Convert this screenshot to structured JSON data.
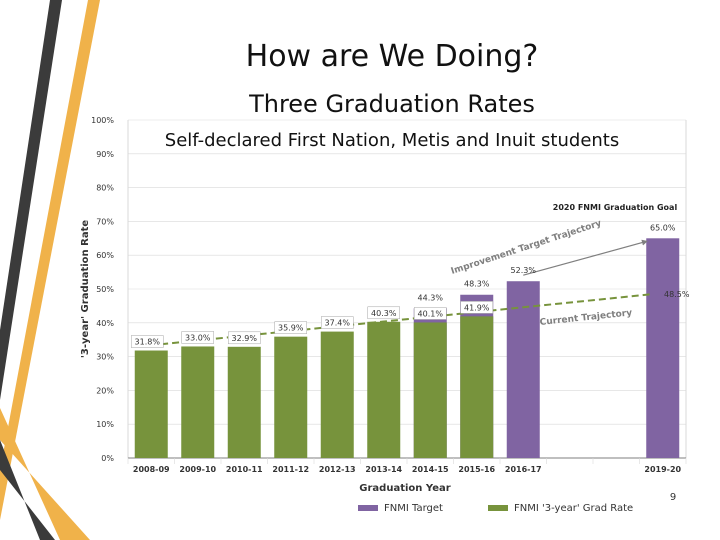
{
  "slide": {
    "title": "How are We Doing?",
    "subtitle": "Three Graduation Rates",
    "subheading": "Self-declared First Nation, Metis and Inuit students",
    "page_number": "9"
  },
  "colors": {
    "purple": "#8064a2",
    "green": "#77933c",
    "gold": "#f0b24a",
    "dark_stripe": "#3b3b3b"
  },
  "chart_data": {
    "type": "bar",
    "xlabel": "Graduation Year",
    "ylabel": "'3-year' Graduation Rate",
    "ylim": [
      0,
      100
    ],
    "yticks": [
      "0%",
      "10%",
      "20%",
      "30%",
      "40%",
      "50%",
      "60%",
      "70%",
      "80%",
      "90%",
      "100%"
    ],
    "categories": [
      "2008-09",
      "2009-10",
      "2010-11",
      "2011-12",
      "2012-13",
      "2013-14",
      "2014-15",
      "2015-16",
      "2016-17",
      "",
      "",
      "2019-20"
    ],
    "series": [
      {
        "name": "FNMI Target",
        "color": "#8064a2",
        "values": [
          null,
          null,
          null,
          null,
          null,
          null,
          44.3,
          48.3,
          52.3,
          null,
          null,
          65.0
        ],
        "labels": [
          "",
          "",
          "",
          "",
          "",
          "",
          "44.3%",
          "48.3%",
          "52.3%",
          "",
          "",
          "65.0%"
        ]
      },
      {
        "name": "FNMI '3-year' Grad Rate",
        "color": "#77933c",
        "values": [
          31.8,
          33.0,
          32.9,
          35.9,
          37.4,
          40.3,
          40.1,
          41.9,
          null,
          null,
          null,
          null
        ],
        "labels": [
          "31.8%",
          "33.0%",
          "32.9%",
          "35.9%",
          "37.4%",
          "40.3%",
          "40.1%",
          "41.9%",
          "",
          "",
          "",
          ""
        ]
      }
    ],
    "annotations": {
      "goal": "2020 FNMI Graduation Goal",
      "current_trajectory_end": "48.5%",
      "improvement_trajectory": "Improvement Target Trajectory",
      "current_trajectory": "Current Trajectory"
    },
    "trend_lines": {
      "current": {
        "from": [
          0,
          33.0
        ],
        "to": [
          11,
          48.5
        ]
      },
      "improvement": {
        "from": [
          8,
          52.3
        ],
        "to": [
          11,
          65.0
        ]
      }
    },
    "legend": "bottom"
  }
}
